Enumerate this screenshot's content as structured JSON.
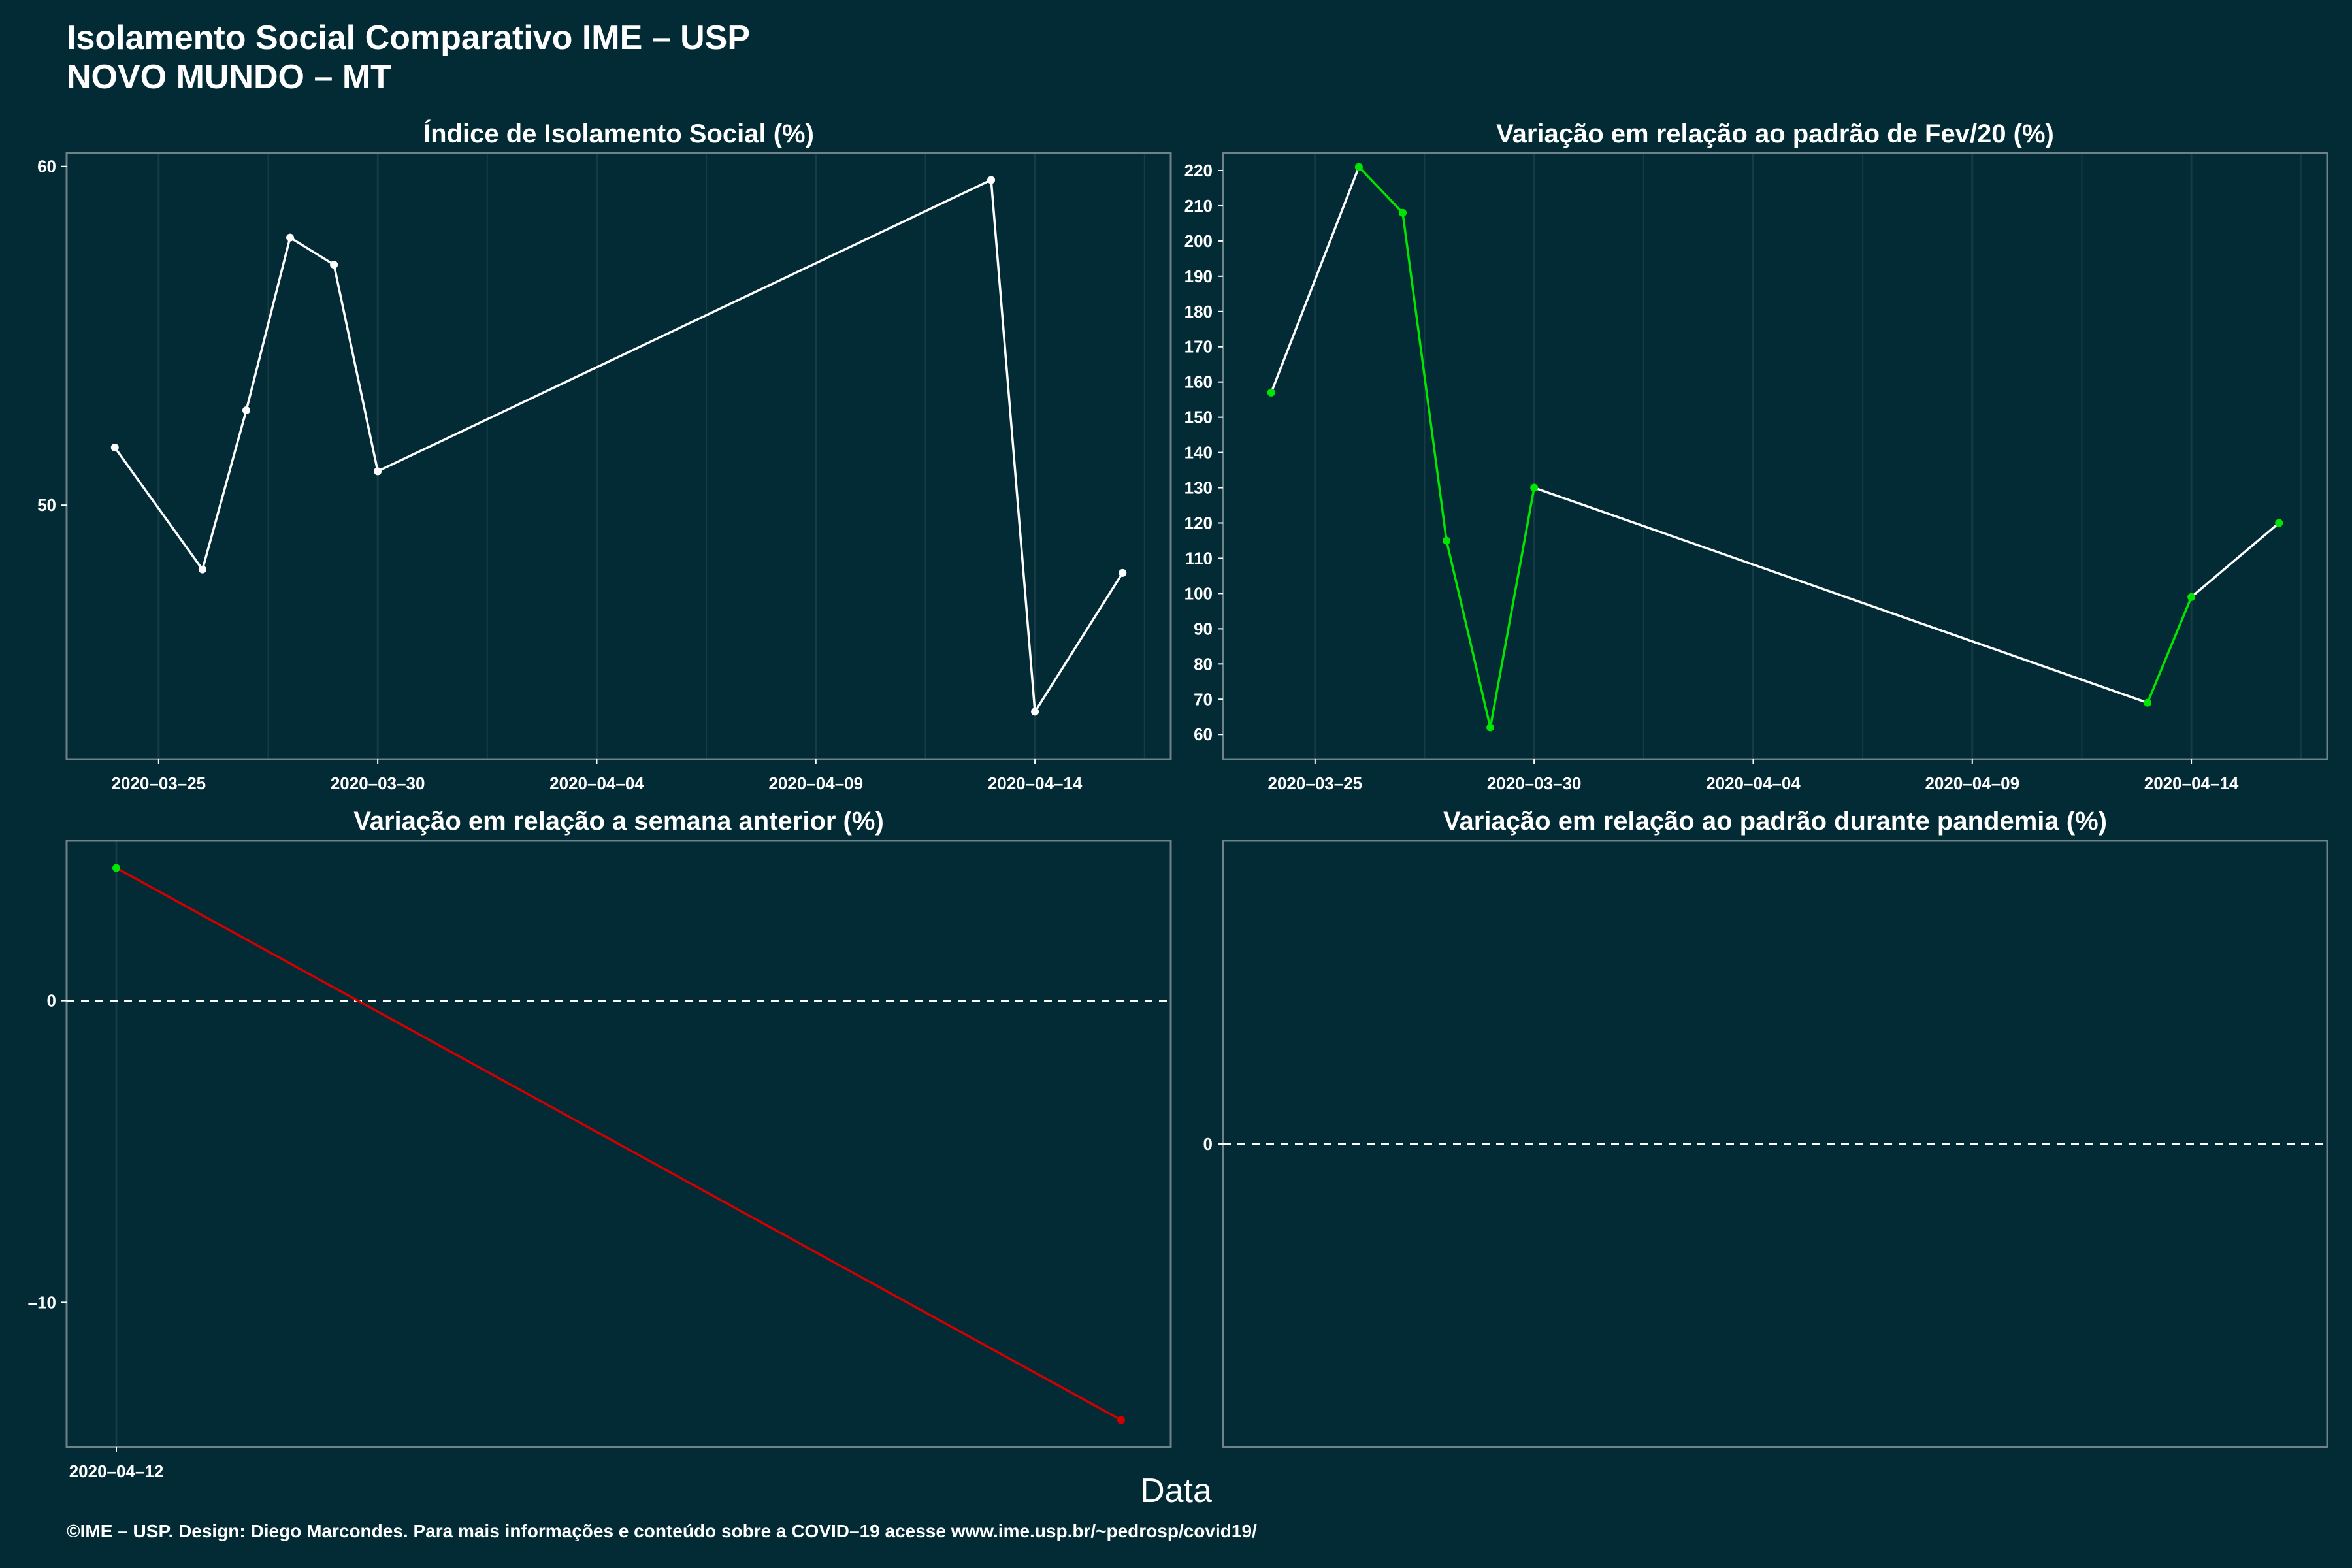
{
  "title": "Isolamento Social Comparativo IME – USP",
  "subtitle": "NOVO MUNDO – MT",
  "x_axis_label": "Data",
  "caption": "©IME – USP. Design: Diego Marcondes. Para mais informações e conteúdo sobre a COVID–19 acesse www.ime.usp.br/~pedrosp/covid19/",
  "colors": {
    "background": "#022b35",
    "line_white": "#ffffff",
    "increase": "#00e600",
    "decrease": "#d00000",
    "frame": "#6f8287",
    "grid": "#163b45"
  },
  "chart_data": [
    {
      "id": "isolamento",
      "type": "line",
      "title": "Índice de Isolamento Social (%)",
      "x_ticks": [
        "2020–03–25",
        "2020–03–30",
        "2020–04–04",
        "2020–04–09",
        "2020–04–14"
      ],
      "y_ticks": [
        "50",
        "60"
      ],
      "ylim": [
        42.5,
        60.4
      ],
      "xlim": [
        "2020-03-22.9",
        "2020-04-17.1"
      ],
      "points": [
        {
          "x": "2020-03-24",
          "y": 51.7
        },
        {
          "x": "2020-03-26",
          "y": 48.1
        },
        {
          "x": "2020-03-27",
          "y": 52.8
        },
        {
          "x": "2020-03-28",
          "y": 57.9
        },
        {
          "x": "2020-03-29",
          "y": 57.1
        },
        {
          "x": "2020-03-30",
          "y": 51.0
        },
        {
          "x": "2020-04-13",
          "y": 59.6
        },
        {
          "x": "2020-04-14",
          "y": 43.9
        },
        {
          "x": "2020-04-16",
          "y": 48.0
        }
      ]
    },
    {
      "id": "fev20",
      "type": "line",
      "title": "Variação em relação ao padrão de Fev/20 (%)",
      "x_ticks": [
        "2020–03–25",
        "2020–03–30",
        "2020–04–04",
        "2020–04–09",
        "2020–04–14"
      ],
      "y_ticks": [
        "60",
        "70",
        "80",
        "90",
        "100",
        "110",
        "120",
        "130",
        "140",
        "150",
        "160",
        "170",
        "180",
        "190",
        "200",
        "210",
        "220"
      ],
      "ylim": [
        53,
        225
      ],
      "xlim": [
        "2020-03-22.9",
        "2020-04-17.1"
      ],
      "points": [
        {
          "x": "2020-03-24",
          "y": 157,
          "color": "green"
        },
        {
          "x": "2020-03-26",
          "y": 221,
          "color": "green"
        },
        {
          "x": "2020-03-27",
          "y": 208,
          "color": "green"
        },
        {
          "x": "2020-03-28",
          "y": 115,
          "color": "green"
        },
        {
          "x": "2020-03-29",
          "y": 62,
          "color": "green"
        },
        {
          "x": "2020-03-30",
          "y": 130,
          "color": "green"
        },
        {
          "x": "2020-04-13",
          "y": 69,
          "color": "green"
        },
        {
          "x": "2020-04-14",
          "y": 99,
          "color": "green"
        },
        {
          "x": "2020-04-16",
          "y": 120,
          "color": "green"
        }
      ]
    },
    {
      "id": "semana",
      "type": "line",
      "title": "Variação em relação a semana anterior (%)",
      "x_ticks": [
        "2020–04–12"
      ],
      "y_ticks": [
        "–10",
        "0"
      ],
      "ylim": [
        -14.8,
        5.3
      ],
      "reference_line": 0,
      "points": [
        {
          "x": 0,
          "y": 4.4,
          "color": "green"
        },
        {
          "x": 1,
          "y": -13.9,
          "color": "red"
        }
      ]
    },
    {
      "id": "pandemia",
      "type": "line",
      "title": "Variação em relação ao padrão durante pandemia (%)",
      "x_ticks": [],
      "y_ticks": [
        "0"
      ],
      "ylim": [
        -1,
        1
      ],
      "reference_line": 0,
      "points": []
    }
  ]
}
